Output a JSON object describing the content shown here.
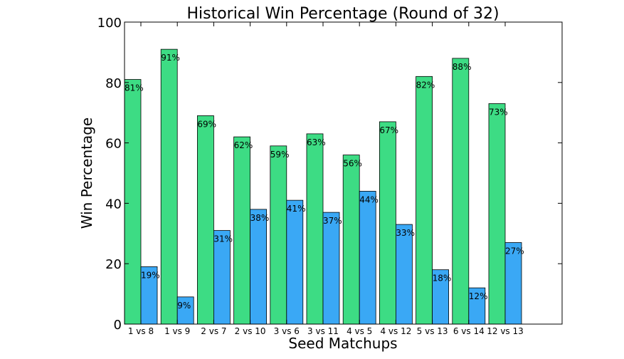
{
  "chart_data": {
    "type": "bar",
    "title": "Historical Win Percentage (Round of 32)",
    "xlabel": "Seed Matchups",
    "ylabel": "Win Percentage",
    "ylim": [
      0,
      100
    ],
    "yticks": [
      0,
      20,
      40,
      60,
      80,
      100
    ],
    "categories": [
      "1 vs 8",
      "1 vs 9",
      "2 vs 7",
      "2 vs 10",
      "3 vs 6",
      "3 vs 11",
      "4 vs 5",
      "4 vs 12",
      "5 vs 13",
      "6 vs 14",
      "12 vs 13"
    ],
    "series": [
      {
        "color": "#3ddc84",
        "values": [
          81,
          91,
          69,
          62,
          59,
          63,
          56,
          67,
          82,
          88,
          73
        ],
        "labels": [
          "81%",
          "91%",
          "69%",
          "62%",
          "59%",
          "63%",
          "56%",
          "67%",
          "82%",
          "88%",
          "73%"
        ]
      },
      {
        "color": "#3aa8f5",
        "values": [
          19,
          9,
          31,
          38,
          41,
          37,
          44,
          33,
          18,
          12,
          27
        ],
        "labels": [
          "19%",
          "9%",
          "31%",
          "38%",
          "41%",
          "37%",
          "44%",
          "33%",
          "18%",
          "12%",
          "27%"
        ]
      }
    ],
    "legend": "none",
    "grid": false
  }
}
